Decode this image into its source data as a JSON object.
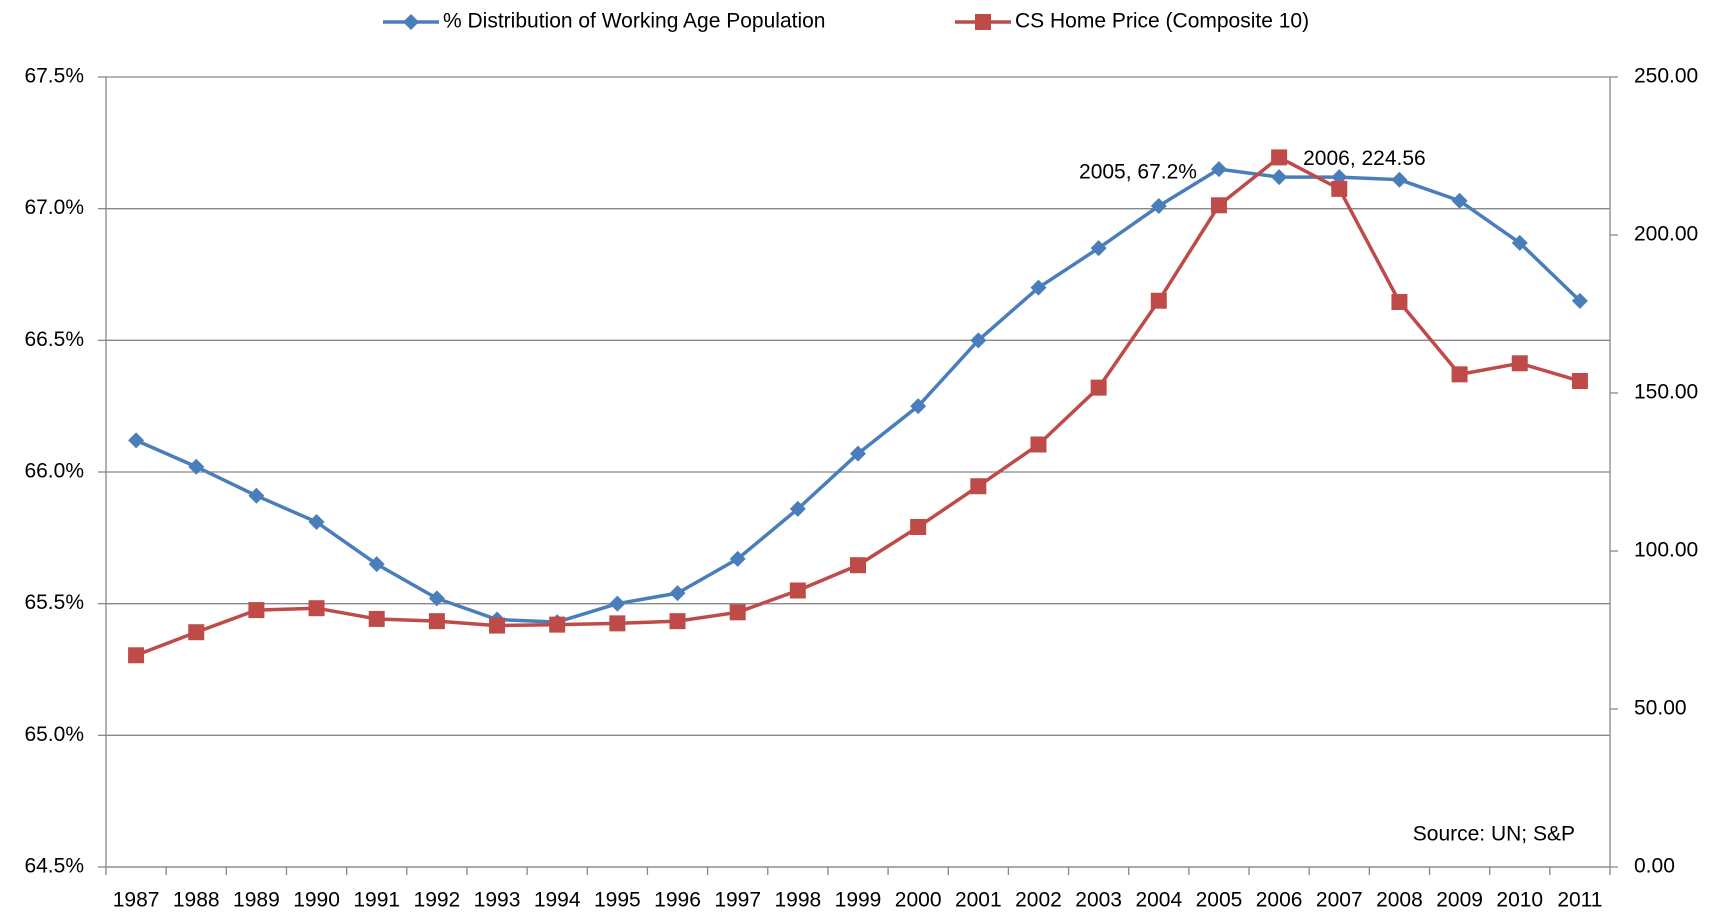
{
  "chart_data": {
    "type": "line",
    "categories": [
      "1987",
      "1988",
      "1989",
      "1990",
      "1991",
      "1992",
      "1993",
      "1994",
      "1995",
      "1996",
      "1997",
      "1998",
      "1999",
      "2000",
      "2001",
      "2002",
      "2003",
      "2004",
      "2005",
      "2006",
      "2007",
      "2008",
      "2009",
      "2010",
      "2011"
    ],
    "series": [
      {
        "name": "% Distribution of Working Age Population",
        "color": "#4a7ebb",
        "axis": "y",
        "values": [
          66.12,
          66.02,
          65.91,
          65.81,
          65.65,
          65.52,
          65.44,
          65.43,
          65.5,
          65.54,
          65.67,
          65.86,
          66.07,
          66.25,
          66.5,
          66.7,
          66.85,
          67.01,
          67.15,
          67.12,
          67.12,
          67.11,
          67.03,
          66.87,
          66.65
        ]
      },
      {
        "name": "CS Home Price (Composite 10)",
        "color": "#be4b48",
        "axis": "y2",
        "values": [
          67.0,
          74.3,
          81.3,
          81.9,
          78.5,
          77.8,
          76.4,
          76.7,
          77.1,
          77.8,
          80.6,
          87.5,
          95.5,
          107.6,
          120.5,
          133.7,
          151.7,
          179.2,
          209.4,
          224.56,
          214.6,
          178.8,
          155.9,
          159.4,
          153.8
        ]
      }
    ],
    "ylim": [
      64.5,
      67.5
    ],
    "yticks": [
      {
        "value": 64.5,
        "label": "64.5%"
      },
      {
        "value": 65.0,
        "label": "65.0%"
      },
      {
        "value": 65.5,
        "label": "65.5%"
      },
      {
        "value": 66.0,
        "label": "66.0%"
      },
      {
        "value": 66.5,
        "label": "66.5%"
      },
      {
        "value": 67.0,
        "label": "67.0%"
      },
      {
        "value": 67.5,
        "label": "67.5%"
      }
    ],
    "y2lim": [
      0,
      250
    ],
    "y2ticks": [
      {
        "value": 0,
        "label": "0.00"
      },
      {
        "value": 50,
        "label": "50.00"
      },
      {
        "value": 100,
        "label": "100.00"
      },
      {
        "value": 150,
        "label": "150.00"
      },
      {
        "value": 200,
        "label": "200.00"
      },
      {
        "value": 250,
        "label": "250.00"
      }
    ],
    "grid": true,
    "legend": "top",
    "annotations": [
      "2005, 67.2%",
      "2006, 224.56"
    ],
    "source": "Source: UN; S&P"
  }
}
